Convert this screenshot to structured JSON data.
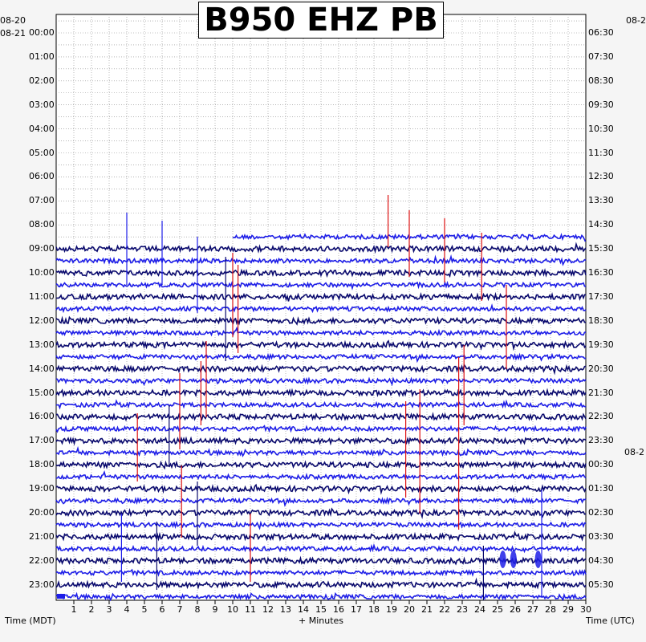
{
  "title": "B950 EHZ PB",
  "left_header": {
    "date_prev": "08-20",
    "date": "08-21"
  },
  "right_header": {
    "date_prev": "08-2",
    "date_mid": "08-2"
  },
  "footer": {
    "left_label": "Time (MDT)",
    "center_label": "+ Minutes",
    "right_label": "Time (UTC)"
  },
  "chart_data": {
    "type": "helicorder",
    "title": "B950 EHZ PB",
    "xlabel": "+ Minutes",
    "x_ticks": [
      1,
      2,
      3,
      4,
      5,
      6,
      7,
      8,
      9,
      10,
      11,
      12,
      13,
      14,
      15,
      16,
      17,
      18,
      19,
      20,
      21,
      22,
      23,
      24,
      25,
      26,
      27,
      28,
      29,
      30
    ],
    "xlim": [
      0,
      30
    ],
    "left_axis_label": "Time (MDT)",
    "right_axis_label": "Time (UTC)",
    "left_times": [
      "00:00",
      "01:00",
      "02:00",
      "03:00",
      "04:00",
      "05:00",
      "06:00",
      "07:00",
      "08:00",
      "09:00",
      "10:00",
      "11:00",
      "12:00",
      "13:00",
      "14:00",
      "15:00",
      "16:00",
      "17:00",
      "18:00",
      "19:00",
      "20:00",
      "21:00",
      "22:00",
      "23:00"
    ],
    "right_times": [
      "06:30",
      "07:30",
      "08:30",
      "09:30",
      "10:30",
      "11:30",
      "12:30",
      "13:30",
      "14:30",
      "15:30",
      "16:30",
      "17:30",
      "18:30",
      "19:30",
      "20:30",
      "21:30",
      "22:30",
      "23:30",
      "00:30",
      "01:30",
      "02:30",
      "03:30",
      "04:30",
      "05:30"
    ],
    "rows_per_hour": 2,
    "data_start_minute": 10.0,
    "data_start_hour": "08:30",
    "trace_colors": [
      "#0a0a6e",
      "#1e1ee8"
    ],
    "event_color": "#dd1111",
    "grid": true
  }
}
